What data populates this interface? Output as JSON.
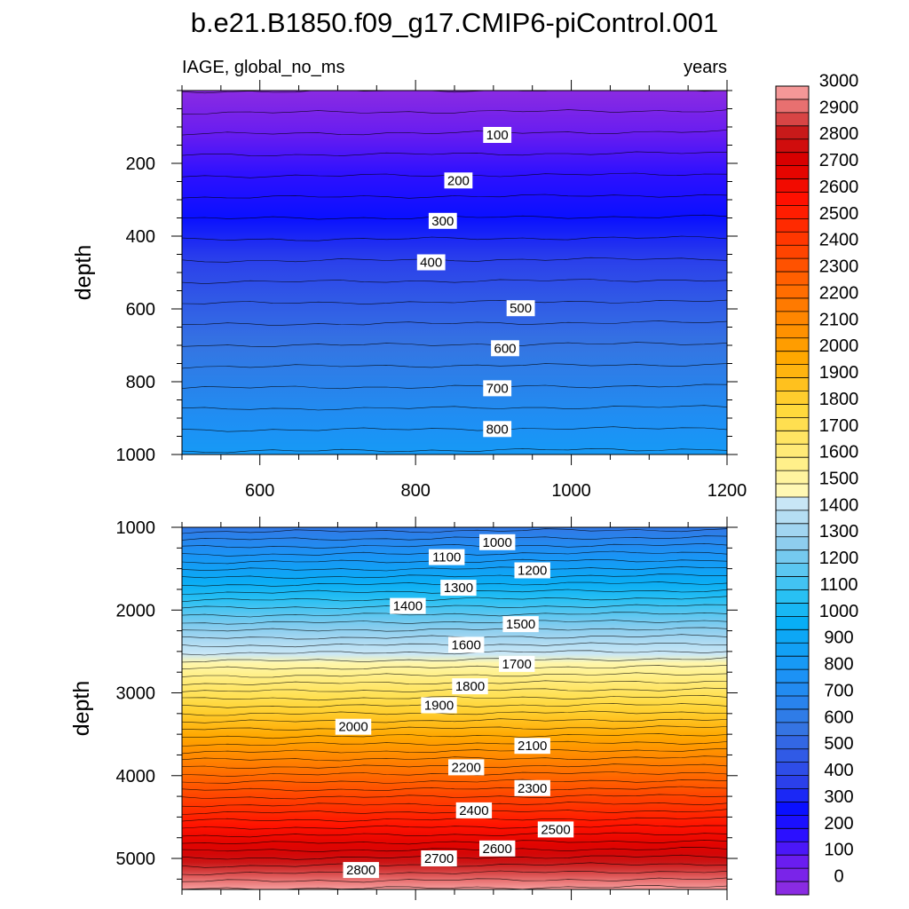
{
  "title": "b.e21.B1850.f09_g17.CMIP6-piControl.001",
  "chart_data": [
    {
      "type": "heatmap",
      "panel": "top",
      "subtitle_left": "IAGE, global_no_ms",
      "subtitle_right": "years",
      "xlabel": "",
      "ylabel": "depth",
      "xlim": [
        500,
        1200
      ],
      "ylim": [
        0,
        1000
      ],
      "y_reversed": true,
      "grid": false,
      "x_ticks": [
        600,
        800,
        1000,
        1200
      ],
      "x_tick_labels": [
        "600",
        "800",
        "1000",
        "1200"
      ],
      "y_ticks": [
        200,
        400,
        600,
        800,
        1000
      ],
      "y_tick_labels": [
        "200",
        "400",
        "600",
        "800",
        "1000"
      ],
      "field": {
        "depth_at_age0": 0,
        "years_per_meter": 0.86
      },
      "contour_interval": 50,
      "contour_labels": [
        {
          "value": 100,
          "text": "100",
          "x": 905,
          "y": 122
        },
        {
          "value": 200,
          "text": "200",
          "x": 855,
          "y": 247
        },
        {
          "value": 300,
          "text": "300",
          "x": 835,
          "y": 358
        },
        {
          "value": 400,
          "text": "400",
          "x": 820,
          "y": 472
        },
        {
          "value": 500,
          "text": "500",
          "x": 935,
          "y": 598
        },
        {
          "value": 600,
          "text": "600",
          "x": 915,
          "y": 708
        },
        {
          "value": 700,
          "text": "700",
          "x": 905,
          "y": 818
        },
        {
          "value": 800,
          "text": "800",
          "x": 905,
          "y": 930
        }
      ]
    },
    {
      "type": "heatmap",
      "panel": "bottom",
      "subtitle_left": "",
      "subtitle_right": "",
      "xlabel": "",
      "ylabel": "depth",
      "xlim": [
        500,
        1200
      ],
      "ylim": [
        1000,
        5375
      ],
      "y_reversed": true,
      "grid": false,
      "x_ticks": [
        600,
        800,
        1000,
        1200
      ],
      "x_tick_labels": [
        "",
        "",
        "",
        ""
      ],
      "y_ticks": [
        1000,
        2000,
        3000,
        4000,
        5000
      ],
      "y_tick_labels": [
        "1000",
        "2000",
        "3000",
        "4000",
        "5000"
      ],
      "field": {
        "depth_at_age0": -150,
        "years_per_meter": 0.545
      },
      "contour_interval": 50,
      "contour_labels": [
        {
          "value": 1000,
          "text": "1000",
          "x": 905,
          "y": 1180
        },
        {
          "value": 1100,
          "text": "1100",
          "x": 840,
          "y": 1360
        },
        {
          "value": 1200,
          "text": "1200",
          "x": 950,
          "y": 1520
        },
        {
          "value": 1300,
          "text": "1300",
          "x": 855,
          "y": 1730
        },
        {
          "value": 1400,
          "text": "1400",
          "x": 790,
          "y": 1950
        },
        {
          "value": 1500,
          "text": "1500",
          "x": 935,
          "y": 2170
        },
        {
          "value": 1600,
          "text": "1600",
          "x": 865,
          "y": 2420
        },
        {
          "value": 1700,
          "text": "1700",
          "x": 930,
          "y": 2650
        },
        {
          "value": 1800,
          "text": "1800",
          "x": 870,
          "y": 2920
        },
        {
          "value": 1900,
          "text": "1900",
          "x": 830,
          "y": 3150
        },
        {
          "value": 2000,
          "text": "2000",
          "x": 720,
          "y": 3410
        },
        {
          "value": 2100,
          "text": "2100",
          "x": 950,
          "y": 3640
        },
        {
          "value": 2200,
          "text": "2200",
          "x": 865,
          "y": 3900
        },
        {
          "value": 2300,
          "text": "2300",
          "x": 950,
          "y": 4150
        },
        {
          "value": 2400,
          "text": "2400",
          "x": 875,
          "y": 4420
        },
        {
          "value": 2500,
          "text": "2500",
          "x": 980,
          "y": 4650
        },
        {
          "value": 2600,
          "text": "2600",
          "x": 905,
          "y": 4880
        },
        {
          "value": 2700,
          "text": "2700",
          "x": 830,
          "y": 5000
        },
        {
          "value": 2800,
          "text": "2800",
          "x": 730,
          "y": 5140
        }
      ]
    }
  ],
  "colorbar": {
    "min": -25,
    "max": 3025,
    "level_step": 50,
    "labels": [
      "3000",
      "2900",
      "2800",
      "2700",
      "2600",
      "2500",
      "2400",
      "2300",
      "2200",
      "2100",
      "2000",
      "1900",
      "1800",
      "1700",
      "1600",
      "1500",
      "1400",
      "1300",
      "1200",
      "1100",
      "1000",
      "900",
      "800",
      "700",
      "600",
      "500",
      "400",
      "300",
      "200",
      "100",
      "0"
    ],
    "label_values": [
      3000,
      2900,
      2800,
      2700,
      2600,
      2500,
      2400,
      2300,
      2200,
      2100,
      2000,
      1900,
      1800,
      1700,
      1600,
      1500,
      1400,
      1300,
      1200,
      1100,
      1000,
      900,
      800,
      700,
      600,
      500,
      400,
      300,
      200,
      100,
      0
    ],
    "color_stops": [
      {
        "v": 0,
        "c": "#8a2be2"
      },
      {
        "v": 100,
        "c": "#6a1df0"
      },
      {
        "v": 200,
        "c": "#2c10ff"
      },
      {
        "v": 300,
        "c": "#0a10ff"
      },
      {
        "v": 400,
        "c": "#2b40ea"
      },
      {
        "v": 600,
        "c": "#3574e2"
      },
      {
        "v": 800,
        "c": "#1c92f5"
      },
      {
        "v": 1000,
        "c": "#08aef5"
      },
      {
        "v": 1100,
        "c": "#28c0f3"
      },
      {
        "v": 1300,
        "c": "#8ecdee"
      },
      {
        "v": 1450,
        "c": "#c8e6f6"
      },
      {
        "v": 1499,
        "c": "#cfe9f7"
      },
      {
        "v": 1500,
        "c": "#fff8b4"
      },
      {
        "v": 1600,
        "c": "#fff08a"
      },
      {
        "v": 1800,
        "c": "#ffd93c"
      },
      {
        "v": 2000,
        "c": "#ffa800"
      },
      {
        "v": 2200,
        "c": "#ff7a00"
      },
      {
        "v": 2400,
        "c": "#ff4400"
      },
      {
        "v": 2600,
        "c": "#ff1000"
      },
      {
        "v": 2750,
        "c": "#d80000"
      },
      {
        "v": 2850,
        "c": "#c81a1a"
      },
      {
        "v": 2950,
        "c": "#e87070"
      },
      {
        "v": 3050,
        "c": "#ffbdbd"
      }
    ]
  }
}
